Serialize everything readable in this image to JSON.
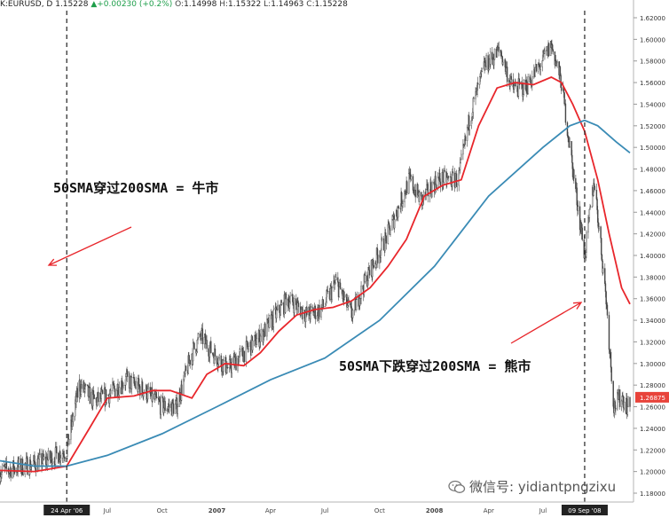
{
  "header": {
    "symbol": "K:EURUSD, D",
    "last": "1.15228",
    "change": "+0.00230 (+0.2%)",
    "o_label": "O:",
    "o": "1.14998",
    "h_label": "H:",
    "h": "1.15322",
    "l_label": "L:",
    "l": "1.14963",
    "c_label": "C:",
    "c": "1.15228"
  },
  "annotations": {
    "bull": "50SMA穿过200SMA = 牛市",
    "bear": "50SMA下跌穿过200SMA = 熊市"
  },
  "watermark": "微信号: yidiantpngzixu",
  "colors": {
    "sma50": "#e8262b",
    "sma200": "#3a8bb5",
    "candle": "#444444",
    "arrow": "#e8262b",
    "price_badge": "#e8433a"
  },
  "chart_data": {
    "type": "candlestick",
    "title": "",
    "ylim": [
      1.18,
      1.63
    ],
    "yticks": [
      "1.62000",
      "1.60000",
      "1.58000",
      "1.56000",
      "1.54000",
      "1.52000",
      "1.50000",
      "1.48000",
      "1.46000",
      "1.44000",
      "1.42000",
      "1.40000",
      "1.38000",
      "1.36000",
      "1.34000",
      "1.32000",
      "1.30000",
      "1.28000",
      "1.26000",
      "1.24000",
      "1.22000",
      "1.20000",
      "1.18000"
    ],
    "current_price": "1.26875",
    "xticks": [
      {
        "label": "24 Apr '06",
        "highlight": true,
        "date": "2006-04-24"
      },
      {
        "label": "Jul",
        "date": "2006-07-01"
      },
      {
        "label": "Oct",
        "date": "2006-10-01"
      },
      {
        "label": "2007",
        "date": "2007-01-01"
      },
      {
        "label": "Apr",
        "date": "2007-04-01"
      },
      {
        "label": "Jul",
        "date": "2007-07-01"
      },
      {
        "label": "Oct",
        "date": "2007-10-01"
      },
      {
        "label": "2008",
        "date": "2008-01-01"
      },
      {
        "label": "Apr",
        "date": "2008-04-01"
      },
      {
        "label": "Jul",
        "date": "2008-07-01"
      },
      {
        "label": "09 Sep '08",
        "highlight": true,
        "date": "2008-09-09"
      }
    ],
    "vlines": [
      "2006-04-24",
      "2008-09-09"
    ],
    "price_anchors": [
      [
        "2006-01-02",
        1.2
      ],
      [
        "2006-02-10",
        1.205
      ],
      [
        "2006-03-20",
        1.21
      ],
      [
        "2006-04-24",
        1.22
      ],
      [
        "2006-05-15",
        1.28
      ],
      [
        "2006-06-10",
        1.265
      ],
      [
        "2006-07-01",
        1.27
      ],
      [
        "2006-08-01",
        1.285
      ],
      [
        "2006-09-01",
        1.275
      ],
      [
        "2006-10-01",
        1.26
      ],
      [
        "2006-10-25",
        1.26
      ],
      [
        "2006-11-20",
        1.31
      ],
      [
        "2006-12-05",
        1.325
      ],
      [
        "2006-12-25",
        1.31
      ],
      [
        "2007-01-20",
        1.295
      ],
      [
        "2007-02-15",
        1.31
      ],
      [
        "2007-03-15",
        1.325
      ],
      [
        "2007-04-10",
        1.345
      ],
      [
        "2007-05-01",
        1.36
      ],
      [
        "2007-06-01",
        1.345
      ],
      [
        "2007-06-25",
        1.35
      ],
      [
        "2007-07-20",
        1.375
      ],
      [
        "2007-08-15",
        1.345
      ],
      [
        "2007-09-10",
        1.38
      ],
      [
        "2007-10-15",
        1.42
      ],
      [
        "2007-11-20",
        1.47
      ],
      [
        "2007-12-10",
        1.45
      ],
      [
        "2008-01-05",
        1.47
      ],
      [
        "2008-02-10",
        1.47
      ],
      [
        "2008-03-01",
        1.53
      ],
      [
        "2008-03-25",
        1.575
      ],
      [
        "2008-04-20",
        1.59
      ],
      [
        "2008-05-10",
        1.555
      ],
      [
        "2008-06-01",
        1.555
      ],
      [
        "2008-06-25",
        1.575
      ],
      [
        "2008-07-15",
        1.595
      ],
      [
        "2008-08-01",
        1.56
      ],
      [
        "2008-08-20",
        1.48
      ],
      [
        "2008-09-09",
        1.4
      ],
      [
        "2008-09-25",
        1.47
      ],
      [
        "2008-10-15",
        1.36
      ],
      [
        "2008-10-28",
        1.26
      ],
      [
        "2008-11-10",
        1.27
      ],
      [
        "2008-11-20",
        1.26
      ]
    ],
    "series": [
      {
        "name": "",
        "type": "sma50",
        "points": [
          [
            "2006-01-02",
            1.201
          ],
          [
            "2006-03-01",
            1.2
          ],
          [
            "2006-04-24",
            1.205
          ],
          [
            "2006-06-01",
            1.24
          ],
          [
            "2006-07-01",
            1.268
          ],
          [
            "2006-08-15",
            1.27
          ],
          [
            "2006-09-15",
            1.275
          ],
          [
            "2006-10-15",
            1.275
          ],
          [
            "2006-11-20",
            1.268
          ],
          [
            "2006-12-15",
            1.29
          ],
          [
            "2007-01-15",
            1.3
          ],
          [
            "2007-02-15",
            1.298
          ],
          [
            "2007-03-15",
            1.31
          ],
          [
            "2007-04-15",
            1.33
          ],
          [
            "2007-05-15",
            1.345
          ],
          [
            "2007-06-15",
            1.35
          ],
          [
            "2007-07-15",
            1.352
          ],
          [
            "2007-08-15",
            1.358
          ],
          [
            "2007-09-15",
            1.37
          ],
          [
            "2007-10-15",
            1.39
          ],
          [
            "2007-11-15",
            1.415
          ],
          [
            "2007-12-15",
            1.455
          ],
          [
            "2008-01-15",
            1.465
          ],
          [
            "2008-02-15",
            1.47
          ],
          [
            "2008-03-15",
            1.52
          ],
          [
            "2008-04-15",
            1.555
          ],
          [
            "2008-05-15",
            1.56
          ],
          [
            "2008-06-15",
            1.558
          ],
          [
            "2008-07-15",
            1.565
          ],
          [
            "2008-08-01",
            1.56
          ],
          [
            "2008-08-20",
            1.54
          ],
          [
            "2008-09-09",
            1.515
          ],
          [
            "2008-10-01",
            1.47
          ],
          [
            "2008-10-20",
            1.42
          ],
          [
            "2008-11-10",
            1.37
          ],
          [
            "2008-11-24",
            1.355
          ]
        ]
      },
      {
        "name": "",
        "type": "sma200",
        "points": [
          [
            "2006-01-02",
            1.21
          ],
          [
            "2006-03-01",
            1.205
          ],
          [
            "2006-04-24",
            1.205
          ],
          [
            "2006-07-01",
            1.215
          ],
          [
            "2006-10-01",
            1.235
          ],
          [
            "2007-01-01",
            1.26
          ],
          [
            "2007-04-01",
            1.285
          ],
          [
            "2007-07-01",
            1.305
          ],
          [
            "2007-10-01",
            1.34
          ],
          [
            "2008-01-01",
            1.39
          ],
          [
            "2008-04-01",
            1.455
          ],
          [
            "2008-07-01",
            1.5
          ],
          [
            "2008-08-15",
            1.52
          ],
          [
            "2008-09-09",
            1.525
          ],
          [
            "2008-10-01",
            1.52
          ],
          [
            "2008-11-01",
            1.505
          ],
          [
            "2008-11-24",
            1.495
          ]
        ]
      }
    ]
  }
}
